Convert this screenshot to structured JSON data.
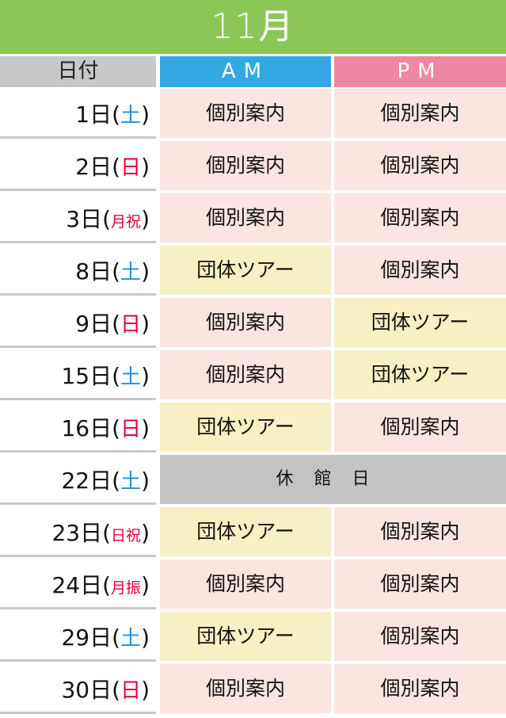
{
  "title": "11月",
  "headers": {
    "date": "日付",
    "am": "AM",
    "pm": "PM"
  },
  "colors": {
    "title_bg": "#8cc657",
    "am_header": "#33a8e2",
    "pm_header": "#ef87a0",
    "individual": "#fce4e0",
    "group": "#f7f0c4",
    "closed": "#c3c3c3",
    "saturday": "#1f8fdc",
    "holiday": "#e5003a"
  },
  "rows": [
    {
      "date": "1日",
      "open": "(",
      "day": "土",
      "close": ")",
      "type": "sat",
      "am": "個別案内",
      "pm": "個別案内"
    },
    {
      "date": "2日",
      "open": "(",
      "day": "日",
      "close": ")",
      "type": "hol",
      "am": "個別案内",
      "pm": "個別案内"
    },
    {
      "date": "3日",
      "open": "(",
      "day": "月祝",
      "close": ")",
      "type": "hol",
      "am": "個別案内",
      "pm": "個別案内"
    },
    {
      "date": "8日",
      "open": "(",
      "day": "土",
      "close": ")",
      "type": "sat",
      "am": "団体ツアー",
      "pm": "個別案内"
    },
    {
      "date": "9日",
      "open": "(",
      "day": "日",
      "close": ")",
      "type": "hol",
      "am": "個別案内",
      "pm": "団体ツアー"
    },
    {
      "date": "15日",
      "open": "(",
      "day": "土",
      "close": ")",
      "type": "sat",
      "am": "個別案内",
      "pm": "団体ツアー"
    },
    {
      "date": "16日",
      "open": "(",
      "day": "日",
      "close": ")",
      "type": "hol",
      "am": "団体ツアー",
      "pm": "個別案内"
    },
    {
      "date": "22日",
      "open": "(",
      "day": "土",
      "close": ")",
      "type": "sat",
      "closed": "休館日"
    },
    {
      "date": "23日",
      "open": "(",
      "day": "日祝",
      "close": ")",
      "type": "hol",
      "am": "団体ツアー",
      "pm": "個別案内"
    },
    {
      "date": "24日",
      "open": "(",
      "day": "月振",
      "close": ")",
      "type": "hol",
      "am": "個別案内",
      "pm": "個別案内"
    },
    {
      "date": "29日",
      "open": "(",
      "day": "土",
      "close": ")",
      "type": "sat",
      "am": "団体ツアー",
      "pm": "個別案内"
    },
    {
      "date": "30日",
      "open": "(",
      "day": "日",
      "close": ")",
      "type": "hol",
      "am": "個別案内",
      "pm": "個別案内"
    }
  ]
}
